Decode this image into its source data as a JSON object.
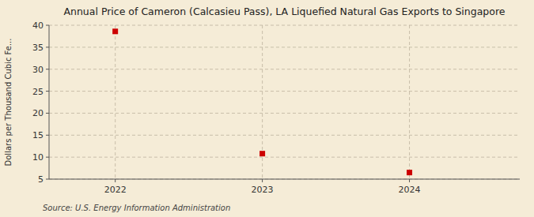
{
  "chart_data": {
    "type": "scatter",
    "title": "Annual Price of Cameron (Calcasieu Pass), LA Liquefied Natural Gas Exports to Singapore",
    "ylabel": "Dollars per Thousand Cubic Fe...",
    "annotations": [
      "Source: U.S. Energy Information Administration"
    ],
    "x": [
      2022,
      2023,
      2024
    ],
    "values": [
      38.6,
      10.8,
      6.5
    ],
    "xlim": [
      2021.55,
      2024.75
    ],
    "ylim": [
      5,
      40
    ],
    "xticks": [
      2022,
      2023,
      2024
    ],
    "yticks": [
      5,
      10,
      15,
      20,
      25,
      30,
      35,
      40
    ],
    "color": "#cc0000",
    "marker": "square",
    "grid": true
  }
}
